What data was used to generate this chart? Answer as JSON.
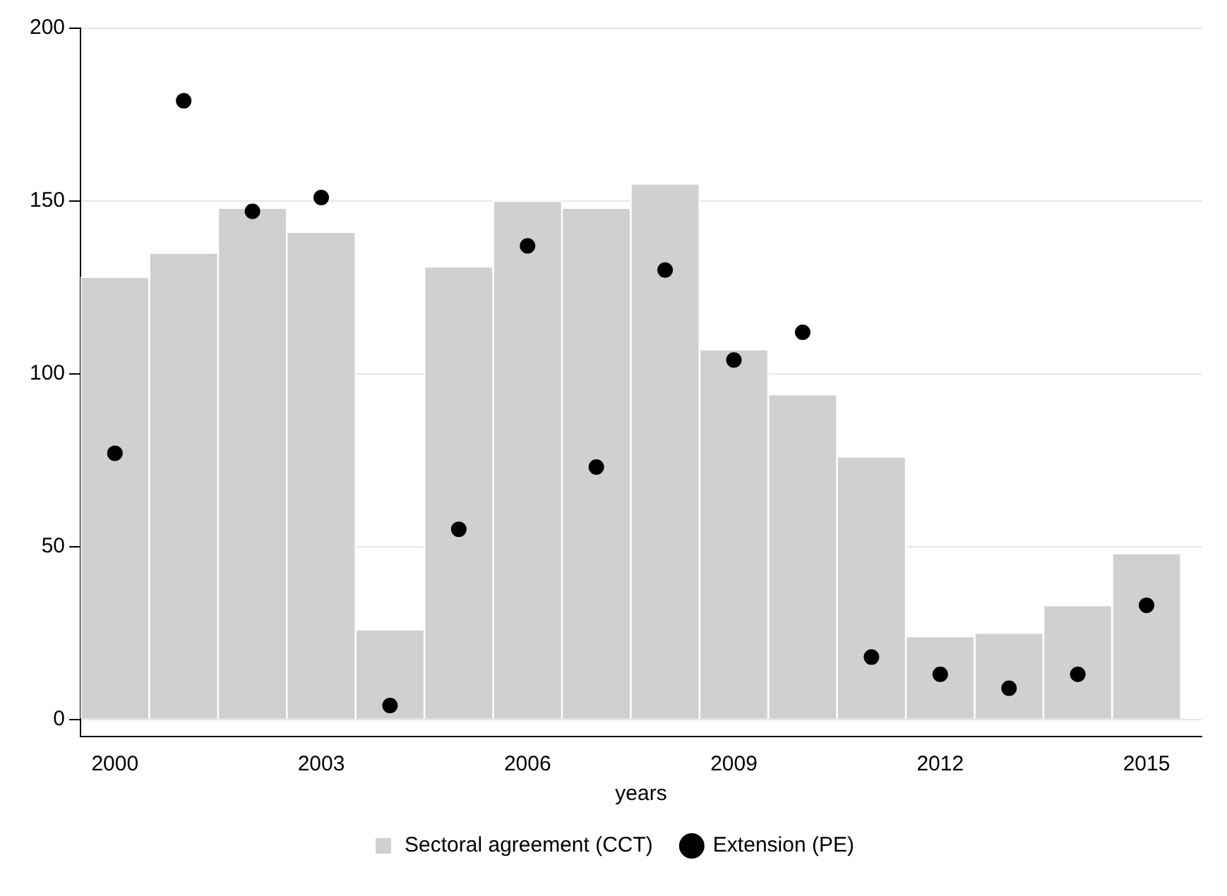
{
  "chart_data": {
    "type": "bar",
    "xlabel": "years",
    "x": [
      2000,
      2001,
      2002,
      2003,
      2004,
      2005,
      2006,
      2007,
      2008,
      2009,
      2010,
      2011,
      2012,
      2013,
      2014,
      2015
    ],
    "series": [
      {
        "name": "Sectoral agreement (CCT)",
        "color": "#d0d0d0",
        "values": [
          128,
          135,
          148,
          141,
          26,
          131,
          150,
          148,
          155,
          107,
          94,
          76,
          24,
          25,
          33,
          48
        ]
      },
      {
        "name": "Extension (PE)",
        "type": "scatter",
        "color": "#000000",
        "values": [
          77,
          179,
          147,
          151,
          4,
          55,
          137,
          73,
          130,
          104,
          112,
          18,
          13,
          9,
          13,
          33
        ]
      }
    ],
    "xlim": [
      1999.5,
      2015.8
    ],
    "xticks": [
      2000,
      2003,
      2006,
      2009,
      2012,
      2015
    ],
    "ylim": [
      -5,
      200
    ],
    "yticks": [
      0,
      50,
      100,
      150,
      200
    ],
    "grid": "y",
    "legend": "bottom",
    "marker": "circle"
  }
}
